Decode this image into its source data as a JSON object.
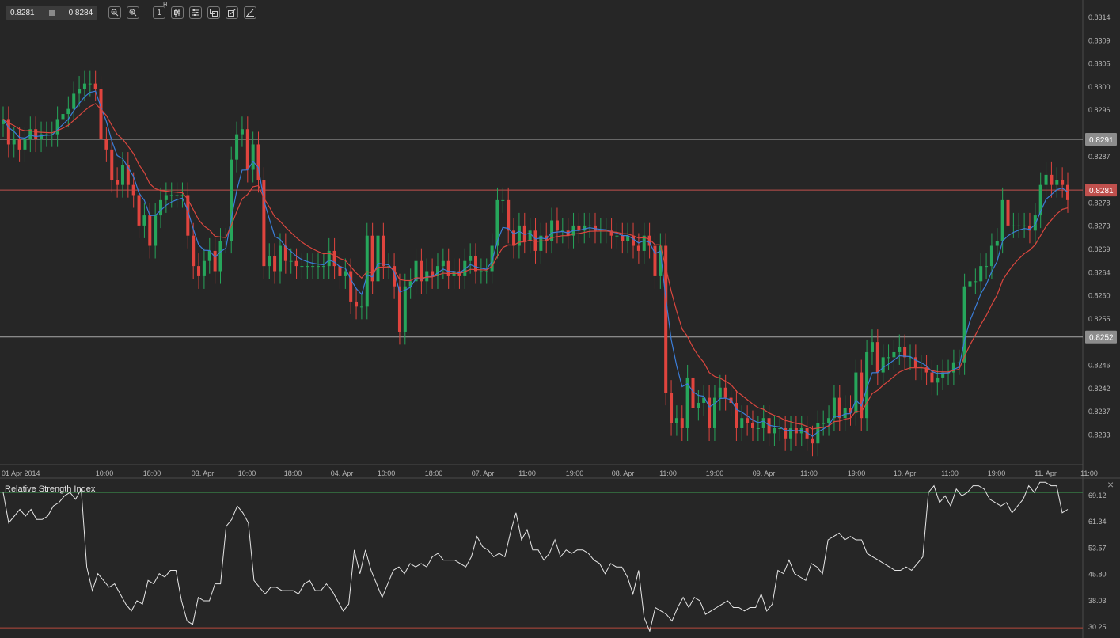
{
  "toolbar": {
    "bid": "0.8281",
    "ask": "0.8284",
    "icons": [
      "zoom-out-icon",
      "zoom-in-icon",
      "timeframe-icon",
      "candles-icon",
      "indicators-icon",
      "templates-icon",
      "draw-icon",
      "objects-icon"
    ],
    "timeframe_label": "1",
    "timeframe_sup": "H"
  },
  "main_chart": {
    "price_axis_ticks": [
      "0.8314",
      "0.8309",
      "0.8305",
      "0.8300",
      "0.8296",
      "0.8291",
      "0.8287",
      "0.8281",
      "0.8278",
      "0.8273",
      "0.8269",
      "0.8264",
      "0.8260",
      "0.8255",
      "0.8252",
      "0.8246",
      "0.8242",
      "0.8237",
      "0.8233"
    ],
    "time_axis_ticks": [
      "01 Apr 2014",
      "10:00",
      "18:00",
      "03. Apr",
      "10:00",
      "18:00",
      "04. Apr",
      "10:00",
      "18:00",
      "07. Apr",
      "11:00",
      "19:00",
      "08. Apr",
      "11:00",
      "19:00",
      "09. Apr",
      "11:00",
      "19:00",
      "10. Apr",
      "11:00",
      "19:00",
      "11. Apr",
      "11:00"
    ],
    "lines": [
      {
        "label": "0.8291",
        "color": "#a8a8a8"
      },
      {
        "label": "0.8281",
        "color": "#c0504d"
      },
      {
        "label": "0.8252",
        "color": "#a8a8a8"
      }
    ],
    "colors": {
      "up": "#26a65b",
      "down": "#e0443e",
      "ma_fast": "#3b7dd8",
      "ma_slow": "#d9463e"
    }
  },
  "rsi": {
    "title": "Relative Strength Index",
    "axis_ticks": [
      "69.12",
      "61.34",
      "53.57",
      "45.80",
      "38.03",
      "30.25"
    ],
    "close_label": "×",
    "levels": [
      {
        "value": 70,
        "color": "#3a8a4a"
      },
      {
        "value": 30,
        "color": "#b84a3c"
      }
    ]
  },
  "chart_data": [
    {
      "type": "candlestick",
      "title": "",
      "ylim": [
        0.8229,
        0.8316
      ],
      "open": [
        0.8294,
        0.8295,
        0.829,
        0.8291,
        0.8289,
        0.8291,
        0.8293,
        0.8291,
        0.8292,
        0.8292,
        0.8292,
        0.8295,
        0.8296,
        0.8297,
        0.83,
        0.8301,
        0.8302,
        0.8302,
        0.8301,
        0.8291,
        0.8289,
        0.8283,
        0.8282,
        0.8286,
        0.8282,
        0.828,
        0.8274,
        0.8276,
        0.827,
        0.8276,
        0.8279,
        0.828,
        0.828,
        0.828,
        0.828,
        0.8272,
        0.8266,
        0.8264,
        0.8267,
        0.8269,
        0.8265,
        0.8271,
        0.8271,
        0.8287,
        0.8292,
        0.8293,
        0.8285,
        0.829,
        0.8283,
        0.8266,
        0.8268,
        0.8265,
        0.827,
        0.8267,
        0.8267,
        0.8266,
        0.8266,
        0.8266,
        0.8266,
        0.8266,
        0.8266,
        0.8269,
        0.8266,
        0.8264,
        0.8265,
        0.8259,
        0.8258,
        0.8258,
        0.8272,
        0.8263,
        0.8272,
        0.8266,
        0.8266,
        0.8262,
        0.8253,
        0.8262,
        0.8263,
        0.8267,
        0.8263,
        0.8265,
        0.8264,
        0.8266,
        0.8267,
        0.8264,
        0.8265,
        0.8264,
        0.8267,
        0.8268,
        0.8265,
        0.8265,
        0.8265,
        0.827,
        0.8279,
        0.8279,
        0.8273,
        0.827,
        0.8274,
        0.8271,
        0.8273,
        0.8269,
        0.8272,
        0.8271,
        0.8275,
        0.8273,
        0.8273,
        0.8272,
        0.8274,
        0.8273,
        0.8274,
        0.8274,
        0.8273,
        0.8273,
        0.8273,
        0.8272,
        0.8272,
        0.8271,
        0.8272,
        0.827,
        0.8269,
        0.8272,
        0.827,
        0.8264,
        0.827,
        0.8241,
        0.8235,
        0.8236,
        0.8234,
        0.8244,
        0.8238,
        0.8239,
        0.824,
        0.8234,
        0.824,
        0.8242,
        0.824,
        0.8239,
        0.8234,
        0.8236,
        0.8235,
        0.8234,
        0.8234,
        0.8236,
        0.8233,
        0.8234,
        0.8234,
        0.8232,
        0.8234,
        0.8233,
        0.8234,
        0.8232,
        0.8231,
        0.8235,
        0.8235,
        0.8236,
        0.824,
        0.8236,
        0.8238,
        0.8237,
        0.8245,
        0.8236,
        0.8249,
        0.8251,
        0.8245,
        0.8248,
        0.8248,
        0.8249,
        0.825,
        0.8248,
        0.8248,
        0.8246,
        0.8246,
        0.8245,
        0.8243,
        0.8244,
        0.8245,
        0.8245,
        0.8247,
        0.8247,
        0.8262,
        0.8263,
        0.8263,
        0.8266,
        0.8266,
        0.827,
        0.8271,
        0.8279,
        0.8274,
        0.8274,
        0.8274,
        0.8274,
        0.8273,
        0.8276,
        0.8282,
        0.8284,
        0.8282,
        0.8283,
        0.8282
      ],
      "close": [
        0.8295,
        0.829,
        0.8291,
        0.8289,
        0.8291,
        0.8293,
        0.8291,
        0.8292,
        0.8292,
        0.8292,
        0.8295,
        0.8296,
        0.8297,
        0.83,
        0.8301,
        0.8302,
        0.8302,
        0.8301,
        0.8291,
        0.8289,
        0.8283,
        0.8282,
        0.8286,
        0.8282,
        0.828,
        0.8274,
        0.8276,
        0.827,
        0.8276,
        0.8279,
        0.828,
        0.828,
        0.828,
        0.828,
        0.8272,
        0.8266,
        0.8264,
        0.8267,
        0.8269,
        0.8265,
        0.8271,
        0.8271,
        0.8287,
        0.8292,
        0.8293,
        0.8285,
        0.829,
        0.8283,
        0.8266,
        0.8268,
        0.8265,
        0.827,
        0.8267,
        0.8267,
        0.8266,
        0.8266,
        0.8266,
        0.8266,
        0.8266,
        0.8266,
        0.8269,
        0.8266,
        0.8264,
        0.8265,
        0.8259,
        0.8258,
        0.8258,
        0.8272,
        0.8263,
        0.8272,
        0.8266,
        0.8266,
        0.8262,
        0.8253,
        0.8262,
        0.8263,
        0.8267,
        0.8263,
        0.8265,
        0.8264,
        0.8266,
        0.8267,
        0.8264,
        0.8265,
        0.8264,
        0.8267,
        0.8268,
        0.8265,
        0.8265,
        0.8265,
        0.827,
        0.8279,
        0.8279,
        0.8273,
        0.827,
        0.8274,
        0.8271,
        0.8273,
        0.8269,
        0.8272,
        0.8271,
        0.8275,
        0.8273,
        0.8273,
        0.8272,
        0.8274,
        0.8273,
        0.8274,
        0.8274,
        0.8273,
        0.8273,
        0.8273,
        0.8272,
        0.8272,
        0.8271,
        0.8272,
        0.827,
        0.8269,
        0.8272,
        0.827,
        0.8264,
        0.827,
        0.8241,
        0.8235,
        0.8236,
        0.8234,
        0.8244,
        0.8238,
        0.8239,
        0.824,
        0.8234,
        0.824,
        0.8242,
        0.824,
        0.8239,
        0.8234,
        0.8236,
        0.8235,
        0.8234,
        0.8234,
        0.8236,
        0.8233,
        0.8234,
        0.8234,
        0.8232,
        0.8234,
        0.8233,
        0.8234,
        0.8232,
        0.8231,
        0.8235,
        0.8235,
        0.8236,
        0.824,
        0.8236,
        0.8238,
        0.8237,
        0.8245,
        0.8236,
        0.8249,
        0.8251,
        0.8245,
        0.8248,
        0.8248,
        0.8249,
        0.825,
        0.8248,
        0.8248,
        0.8246,
        0.8246,
        0.8245,
        0.8243,
        0.8244,
        0.8245,
        0.8245,
        0.8247,
        0.8247,
        0.8262,
        0.8263,
        0.8263,
        0.8266,
        0.8266,
        0.827,
        0.8271,
        0.8279,
        0.8274,
        0.8274,
        0.8274,
        0.8274,
        0.8273,
        0.8276,
        0.8282,
        0.8284,
        0.8282,
        0.8283,
        0.8282,
        0.8279
      ]
    },
    {
      "type": "line",
      "title": "Relative Strength Index",
      "ylim": [
        27,
        74
      ],
      "values": [
        70,
        61,
        63,
        65,
        63,
        65,
        62,
        62,
        63,
        66,
        67,
        69,
        70,
        68,
        71,
        48,
        41,
        46,
        44,
        42,
        43,
        40,
        37,
        35,
        38,
        37,
        44,
        43,
        46,
        45,
        47,
        47,
        38,
        32,
        31,
        39,
        38,
        38,
        43,
        43,
        60,
        62,
        66,
        64,
        61,
        44,
        42,
        40,
        42,
        42,
        41,
        41,
        41,
        40,
        43,
        44,
        41,
        41,
        43,
        41,
        38,
        35,
        37,
        53,
        46,
        53,
        47,
        43,
        39,
        43,
        47,
        48,
        46,
        49,
        48,
        49,
        48,
        51,
        52,
        50,
        50,
        50,
        49,
        48,
        51,
        57,
        54,
        53,
        51,
        52,
        51,
        58,
        64,
        56,
        59,
        53,
        53,
        50,
        52,
        56,
        51,
        53,
        52,
        53,
        53,
        52,
        50,
        49,
        46,
        49,
        48,
        48,
        45,
        40,
        47,
        33,
        29,
        36,
        35,
        34,
        32,
        36,
        39,
        36,
        39,
        38,
        34,
        35,
        36,
        37,
        38,
        36,
        36,
        35,
        36,
        36,
        40,
        35,
        37,
        47,
        46,
        50,
        46,
        45,
        44,
        49,
        48,
        46,
        56,
        57,
        58,
        56,
        57,
        56,
        56,
        52,
        51,
        50,
        49,
        48,
        47,
        47,
        48,
        47,
        49,
        51,
        70,
        72,
        67,
        69,
        66,
        71,
        69,
        70,
        72,
        72,
        71,
        68,
        67,
        66,
        67,
        64,
        66,
        68,
        72,
        70,
        73,
        73,
        72,
        72,
        64,
        65
      ]
    }
  ]
}
